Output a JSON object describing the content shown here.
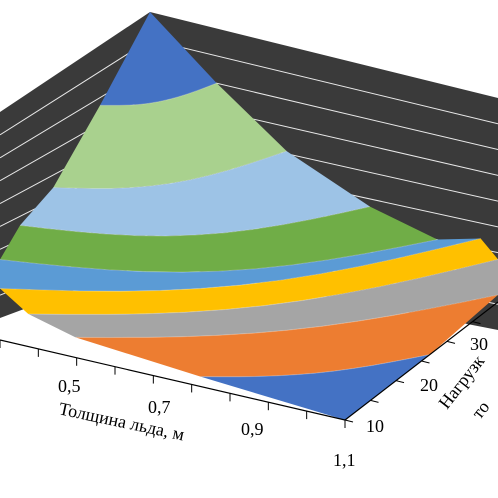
{
  "chart_data": {
    "type": "surface3d",
    "x_axis": {
      "label": "Толщина льда, м",
      "tick_labels": [
        "0,5",
        "0,7",
        "0,9",
        "1,1"
      ],
      "range": [
        0.3,
        1.1
      ]
    },
    "y_axis": {
      "label_visible_fragment": "Нагрузк",
      "label_second_line_fragment": "то",
      "tick_labels": [
        "10",
        "20",
        "30"
      ],
      "range": [
        10,
        40
      ]
    },
    "grid": true,
    "band_colors": [
      "#4472c4",
      "#ed7d31",
      "#a5a5a5",
      "#ffc000",
      "#5b9bd5",
      "#70ad47",
      "#9dc3e6",
      "#a9d18e"
    ],
    "back_wall_color": "#3a3a3a"
  }
}
